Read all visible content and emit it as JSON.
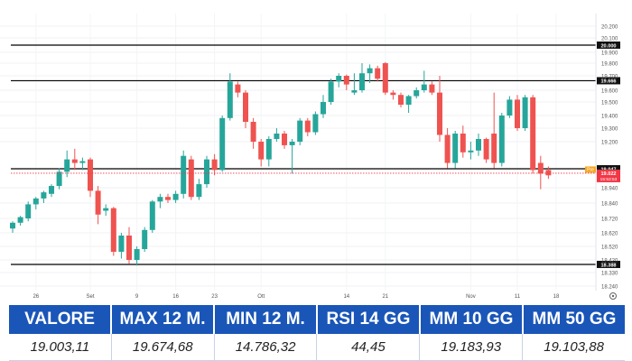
{
  "chart_data": {
    "type": "candlestick",
    "y_ticks": [
      "20.200",
      "20.100",
      "19.900",
      "19.800",
      "19.700",
      "19.600",
      "19.500",
      "19.400",
      "19.300",
      "19.200",
      "18.940",
      "18.840",
      "18.720",
      "18.620",
      "18.520",
      "18.420",
      "18.330",
      "18.240"
    ],
    "y_tick_values": [
      20200,
      20100,
      19900,
      19800,
      19700,
      19600,
      19500,
      19400,
      19300,
      19200,
      18940,
      18840,
      18720,
      18620,
      18520,
      18420,
      18330,
      18240
    ],
    "x_ticks": [
      {
        "label": "26",
        "i": 3
      },
      {
        "label": "Set",
        "i": 10
      },
      {
        "label": "9",
        "i": 16
      },
      {
        "label": "16",
        "i": 21
      },
      {
        "label": "23",
        "i": 26
      },
      {
        "label": "Ott",
        "i": 32
      },
      {
        "label": "14",
        "i": 43
      },
      {
        "label": "21",
        "i": 48
      },
      {
        "label": "Nov",
        "i": 59
      },
      {
        "label": "11",
        "i": 65
      },
      {
        "label": "18",
        "i": 70
      }
    ],
    "horizontal_levels": [
      {
        "value": 20000,
        "label": "20.000",
        "color": "#000000"
      },
      {
        "value": 19666,
        "label": "19.666",
        "color": "#000000"
      },
      {
        "value": 19047,
        "label": "19.047",
        "color": "#000000"
      },
      {
        "value": 18388,
        "label": "18.388",
        "color": "#000000"
      }
    ],
    "price_badge": {
      "value": 19022,
      "label": "19.022",
      "sublabel": "15:53:53",
      "tag": "Pre",
      "color": "#f23645"
    },
    "candles": [
      {
        "o": 18650,
        "h": 18700,
        "l": 18620,
        "c": 18690
      },
      {
        "o": 18690,
        "h": 18740,
        "l": 18670,
        "c": 18730
      },
      {
        "o": 18720,
        "h": 18850,
        "l": 18700,
        "c": 18830
      },
      {
        "o": 18830,
        "h": 18880,
        "l": 18790,
        "c": 18870
      },
      {
        "o": 18870,
        "h": 18920,
        "l": 18840,
        "c": 18910
      },
      {
        "o": 18900,
        "h": 18960,
        "l": 18880,
        "c": 18950
      },
      {
        "o": 18950,
        "h": 19050,
        "l": 18930,
        "c": 19030
      },
      {
        "o": 19030,
        "h": 19150,
        "l": 19000,
        "c": 19100
      },
      {
        "o": 19100,
        "h": 19160,
        "l": 19040,
        "c": 19080
      },
      {
        "o": 19080,
        "h": 19110,
        "l": 19040,
        "c": 19090
      },
      {
        "o": 19100,
        "h": 19110,
        "l": 18880,
        "c": 18920
      },
      {
        "o": 18920,
        "h": 18950,
        "l": 18680,
        "c": 18750
      },
      {
        "o": 18780,
        "h": 18830,
        "l": 18740,
        "c": 18800
      },
      {
        "o": 18800,
        "h": 18810,
        "l": 18450,
        "c": 18480
      },
      {
        "o": 18480,
        "h": 18620,
        "l": 18430,
        "c": 18600
      },
      {
        "o": 18600,
        "h": 18660,
        "l": 18390,
        "c": 18420
      },
      {
        "o": 18420,
        "h": 18520,
        "l": 18380,
        "c": 18500
      },
      {
        "o": 18500,
        "h": 18660,
        "l": 18480,
        "c": 18640
      },
      {
        "o": 18640,
        "h": 18860,
        "l": 18620,
        "c": 18850
      },
      {
        "o": 18850,
        "h": 18900,
        "l": 18800,
        "c": 18880
      },
      {
        "o": 18880,
        "h": 18900,
        "l": 18840,
        "c": 18860
      },
      {
        "o": 18860,
        "h": 18920,
        "l": 18840,
        "c": 18900
      },
      {
        "o": 18900,
        "h": 19150,
        "l": 18870,
        "c": 19120
      },
      {
        "o": 19100,
        "h": 19120,
        "l": 18860,
        "c": 18880
      },
      {
        "o": 18880,
        "h": 18990,
        "l": 18860,
        "c": 18960
      },
      {
        "o": 18960,
        "h": 19120,
        "l": 18940,
        "c": 19100
      },
      {
        "o": 19100,
        "h": 19130,
        "l": 19010,
        "c": 19040
      },
      {
        "o": 19040,
        "h": 19400,
        "l": 19030,
        "c": 19380
      },
      {
        "o": 19380,
        "h": 19720,
        "l": 19360,
        "c": 19660
      },
      {
        "o": 19640,
        "h": 19660,
        "l": 19540,
        "c": 19580
      },
      {
        "o": 19580,
        "h": 19600,
        "l": 19300,
        "c": 19350
      },
      {
        "o": 19350,
        "h": 19380,
        "l": 19160,
        "c": 19200
      },
      {
        "o": 19200,
        "h": 19220,
        "l": 19060,
        "c": 19100
      },
      {
        "o": 19100,
        "h": 19240,
        "l": 19060,
        "c": 19220
      },
      {
        "o": 19220,
        "h": 19300,
        "l": 19200,
        "c": 19260
      },
      {
        "o": 19260,
        "h": 19280,
        "l": 19160,
        "c": 19180
      },
      {
        "o": 19180,
        "h": 19220,
        "l": 19020,
        "c": 19200
      },
      {
        "o": 19200,
        "h": 19380,
        "l": 19180,
        "c": 19360
      },
      {
        "o": 19360,
        "h": 19380,
        "l": 19240,
        "c": 19270
      },
      {
        "o": 19270,
        "h": 19430,
        "l": 19250,
        "c": 19410
      },
      {
        "o": 19410,
        "h": 19560,
        "l": 19380,
        "c": 19500
      },
      {
        "o": 19500,
        "h": 19680,
        "l": 19480,
        "c": 19660
      },
      {
        "o": 19660,
        "h": 19720,
        "l": 19620,
        "c": 19700
      },
      {
        "o": 19700,
        "h": 19710,
        "l": 19600,
        "c": 19640
      },
      {
        "o": 19580,
        "h": 19720,
        "l": 19560,
        "c": 19600
      },
      {
        "o": 19600,
        "h": 19800,
        "l": 19580,
        "c": 19720
      },
      {
        "o": 19720,
        "h": 19790,
        "l": 19650,
        "c": 19760
      },
      {
        "o": 19760,
        "h": 19780,
        "l": 19660,
        "c": 19680
      },
      {
        "o": 19800,
        "h": 19810,
        "l": 19560,
        "c": 19580
      },
      {
        "o": 19580,
        "h": 19600,
        "l": 19520,
        "c": 19560
      },
      {
        "o": 19560,
        "h": 19580,
        "l": 19460,
        "c": 19480
      },
      {
        "o": 19480,
        "h": 19560,
        "l": 19420,
        "c": 19550
      },
      {
        "o": 19550,
        "h": 19620,
        "l": 19530,
        "c": 19600
      },
      {
        "o": 19600,
        "h": 19740,
        "l": 19580,
        "c": 19640
      },
      {
        "o": 19640,
        "h": 19660,
        "l": 19560,
        "c": 19580
      },
      {
        "o": 19580,
        "h": 19700,
        "l": 19200,
        "c": 19250
      },
      {
        "o": 19250,
        "h": 19300,
        "l": 19050,
        "c": 19080
      },
      {
        "o": 19080,
        "h": 19280,
        "l": 19050,
        "c": 19260
      },
      {
        "o": 19260,
        "h": 19320,
        "l": 19110,
        "c": 19140
      },
      {
        "o": 19140,
        "h": 19200,
        "l": 19100,
        "c": 19150
      },
      {
        "o": 19150,
        "h": 19260,
        "l": 19120,
        "c": 19220
      },
      {
        "o": 19220,
        "h": 19230,
        "l": 19080,
        "c": 19100
      },
      {
        "o": 19260,
        "h": 19580,
        "l": 19050,
        "c": 19080
      },
      {
        "o": 19080,
        "h": 19420,
        "l": 19060,
        "c": 19400
      },
      {
        "o": 19400,
        "h": 19550,
        "l": 19380,
        "c": 19520
      },
      {
        "o": 19520,
        "h": 19560,
        "l": 19280,
        "c": 19300
      },
      {
        "o": 19300,
        "h": 19560,
        "l": 19280,
        "c": 19540
      },
      {
        "o": 19540,
        "h": 19560,
        "l": 19020,
        "c": 19040
      },
      {
        "o": 19080,
        "h": 19120,
        "l": 18930,
        "c": 19020
      },
      {
        "o": 19040,
        "h": 19060,
        "l": 18990,
        "c": 19010
      }
    ],
    "colors": {
      "up": "#26a69a",
      "down": "#ef5350"
    }
  },
  "stats": {
    "headers": [
      "VALORE",
      "MAX 12 M.",
      "MIN 12 M.",
      "RSI 14 GG",
      "MM 10 GG",
      "MM 50 GG"
    ],
    "values": [
      "19.003,11",
      "19.674,68",
      "14.786,32",
      "44,45",
      "19.183,93",
      "19.103,88"
    ]
  }
}
